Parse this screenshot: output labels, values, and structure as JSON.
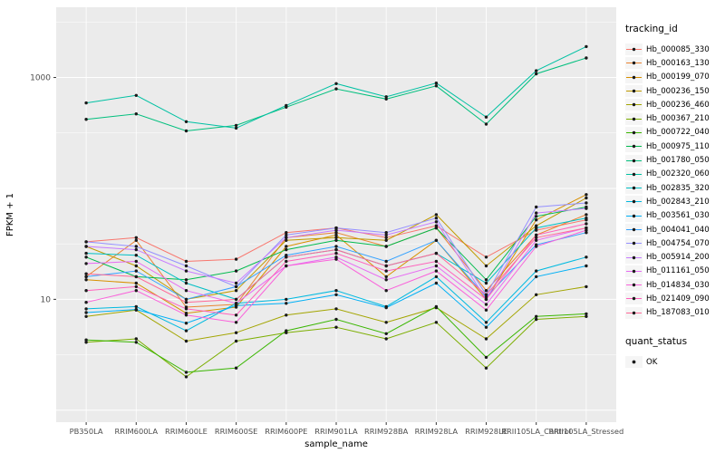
{
  "panel": {
    "bg": "#EBEBEB",
    "grid_major": "#FFFFFF",
    "grid_minor": "#FFFFFF",
    "tick_color": "#333333",
    "tick_label_color": "#4D4D4D",
    "point_color": "#1a1a1a"
  },
  "legend": {
    "tracking_title": "tracking_id",
    "quant_title": "quant_status",
    "quant_items": [
      {
        "label": "OK"
      }
    ]
  },
  "chart_data": {
    "type": "line",
    "title": "",
    "xlabel": "sample_name",
    "ylabel": "FPKM + 1",
    "y_scale": "log10",
    "ylim": [
      0.78,
      4300
    ],
    "y_ticks": [
      {
        "value": 10,
        "label": "10"
      },
      {
        "value": 1000,
        "label": "1000"
      }
    ],
    "y_grid_major": [
      1,
      10,
      100,
      1000
    ],
    "y_grid_minor": [
      3.162,
      31.62,
      316.2,
      3162
    ],
    "legend_position": "right",
    "grid": true,
    "x_categories": [
      "PB350LA",
      "RRIM600LA",
      "RRIM600LE",
      "RRIM600SE",
      "RRIM600PE",
      "RRIM901LA",
      "RRIM928BA",
      "RRIM928LA",
      "RRIM928LE",
      "RRII105LA_Control",
      "RRII105LA_Stressed"
    ],
    "series": [
      {
        "name": "Hb_000085_330",
        "color": "#F8766D",
        "values": [
          33,
          36,
          22,
          23,
          40,
          44,
          36,
          46,
          24,
          42,
          52
        ]
      },
      {
        "name": "Hb_000163_130",
        "color": "#EA8331",
        "values": [
          16,
          34,
          8.5,
          9,
          36,
          40,
          30,
          44,
          12,
          38,
          58
        ]
      },
      {
        "name": "Hb_000199_070",
        "color": "#D89000",
        "values": [
          15,
          14,
          7.5,
          8.5,
          30,
          38,
          16,
          34,
          10,
          52,
          88
        ]
      },
      {
        "name": "Hb_000236_150",
        "color": "#C09B00",
        "values": [
          30,
          20,
          10,
          12,
          34,
          36,
          34,
          58,
          20,
          46,
          82
        ]
      },
      {
        "name": "Hb_000236_460",
        "color": "#A3A500",
        "values": [
          7,
          8,
          4.2,
          5,
          7.2,
          8.2,
          6.2,
          8.4,
          4.4,
          11,
          13
        ]
      },
      {
        "name": "Hb_000367_210",
        "color": "#7CAE00",
        "values": [
          4.1,
          4.4,
          2.0,
          4.2,
          5.0,
          5.6,
          4.4,
          6.2,
          2.4,
          6.6,
          7.0
        ]
      },
      {
        "name": "Hb_000722_040",
        "color": "#39B600",
        "values": [
          4.3,
          4.1,
          2.2,
          2.4,
          5.2,
          6.6,
          4.9,
          8.6,
          3.0,
          7.0,
          7.4
        ]
      },
      {
        "name": "Hb_000975_110",
        "color": "#00BB4E",
        "values": [
          24,
          16,
          15,
          18,
          28,
          34,
          30,
          44,
          15,
          56,
          68
        ]
      },
      {
        "name": "Hb_001780_050",
        "color": "#00BF7D",
        "values": [
          420,
          470,
          330,
          370,
          540,
          790,
          640,
          840,
          380,
          1080,
          1500
        ]
      },
      {
        "name": "Hb_002320_060",
        "color": "#00C1A3",
        "values": [
          590,
          690,
          400,
          350,
          560,
          880,
          670,
          890,
          440,
          1150,
          1900
        ]
      },
      {
        "name": "Hb_002835_320",
        "color": "#00BFC4",
        "values": [
          26,
          25,
          14,
          10,
          24,
          28,
          20,
          26,
          14,
          44,
          54
        ]
      },
      {
        "name": "Hb_002843_210",
        "color": "#00BAE0",
        "values": [
          8.2,
          8.6,
          5.2,
          9.2,
          10,
          12,
          8.6,
          16,
          6.2,
          18,
          24
        ]
      },
      {
        "name": "Hb_003561_030",
        "color": "#00B0F6",
        "values": [
          7.6,
          8.1,
          6.1,
          8.8,
          9.2,
          11,
          8.4,
          14,
          5.6,
          16,
          20
        ]
      },
      {
        "name": "Hb_004041_040",
        "color": "#35A2FF",
        "values": [
          16,
          18,
          10,
          13,
          25,
          30,
          22,
          34,
          10.5,
          31,
          40
        ]
      },
      {
        "name": "Hb_004754_070",
        "color": "#9590FF",
        "values": [
          33,
          30,
          20,
          13,
          38,
          44,
          40,
          54,
          11,
          68,
          74
        ]
      },
      {
        "name": "Hb_005914_200",
        "color": "#C77CFF",
        "values": [
          30,
          28,
          18,
          14,
          36,
          42,
          38,
          50,
          10,
          60,
          66
        ]
      },
      {
        "name": "Hb_011161_050",
        "color": "#E76BF3",
        "values": [
          21,
          22,
          12,
          9.2,
          20,
          24,
          15,
          20,
          9,
          34,
          44
        ]
      },
      {
        "name": "Hb_014834_030",
        "color": "#FA62DB",
        "values": [
          9.4,
          12,
          7.2,
          6.2,
          20,
          23,
          12,
          18,
          8,
          30,
          42
        ]
      },
      {
        "name": "Hb_021409_090",
        "color": "#FF62BC",
        "values": [
          12,
          13,
          8.2,
          7.2,
          22,
          26,
          18,
          22,
          10,
          38,
          48
        ]
      },
      {
        "name": "Hb_187083_010",
        "color": "#FF6A98",
        "values": [
          17,
          16,
          9.4,
          10,
          24,
          28,
          20,
          26,
          11,
          36,
          44
        ]
      }
    ]
  }
}
